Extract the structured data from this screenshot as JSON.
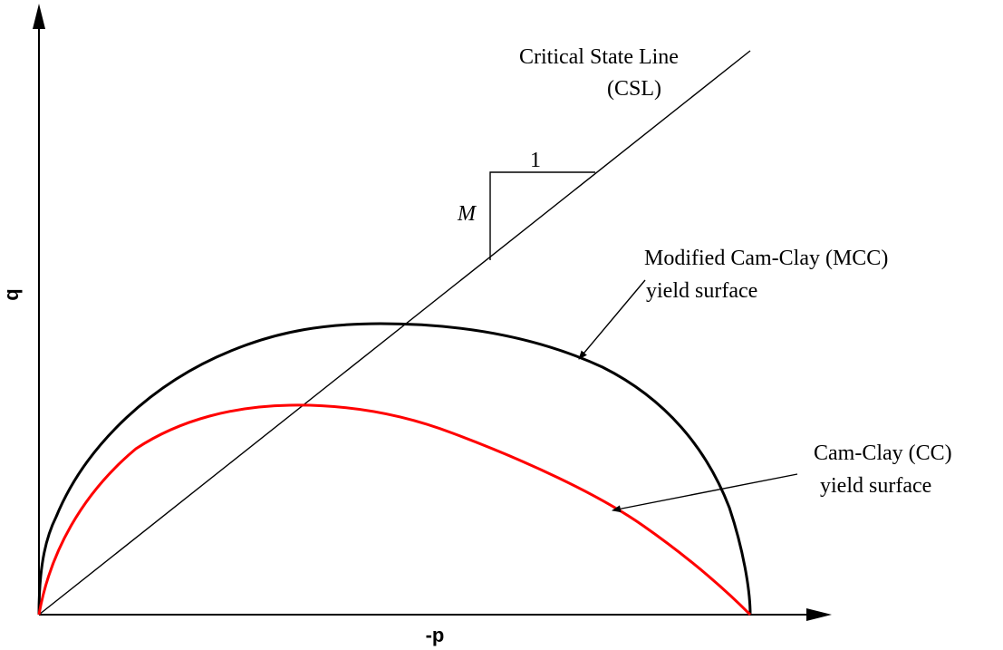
{
  "axes": {
    "y_label": "q",
    "x_label": "-p"
  },
  "labels": {
    "csl_title": "Critical State Line",
    "csl_abbrev": "(CSL)",
    "slope_run": "1",
    "slope_rise": "M",
    "mcc_line1": "Modified Cam-Clay (MCC)",
    "mcc_line2": "yield surface",
    "cc_line1": "Cam-Clay (CC)",
    "cc_line2": "yield surface"
  },
  "colors": {
    "axis": "#000000",
    "csl": "#000000",
    "mcc_curve": "#000000",
    "cc_curve": "#ff0000"
  }
}
